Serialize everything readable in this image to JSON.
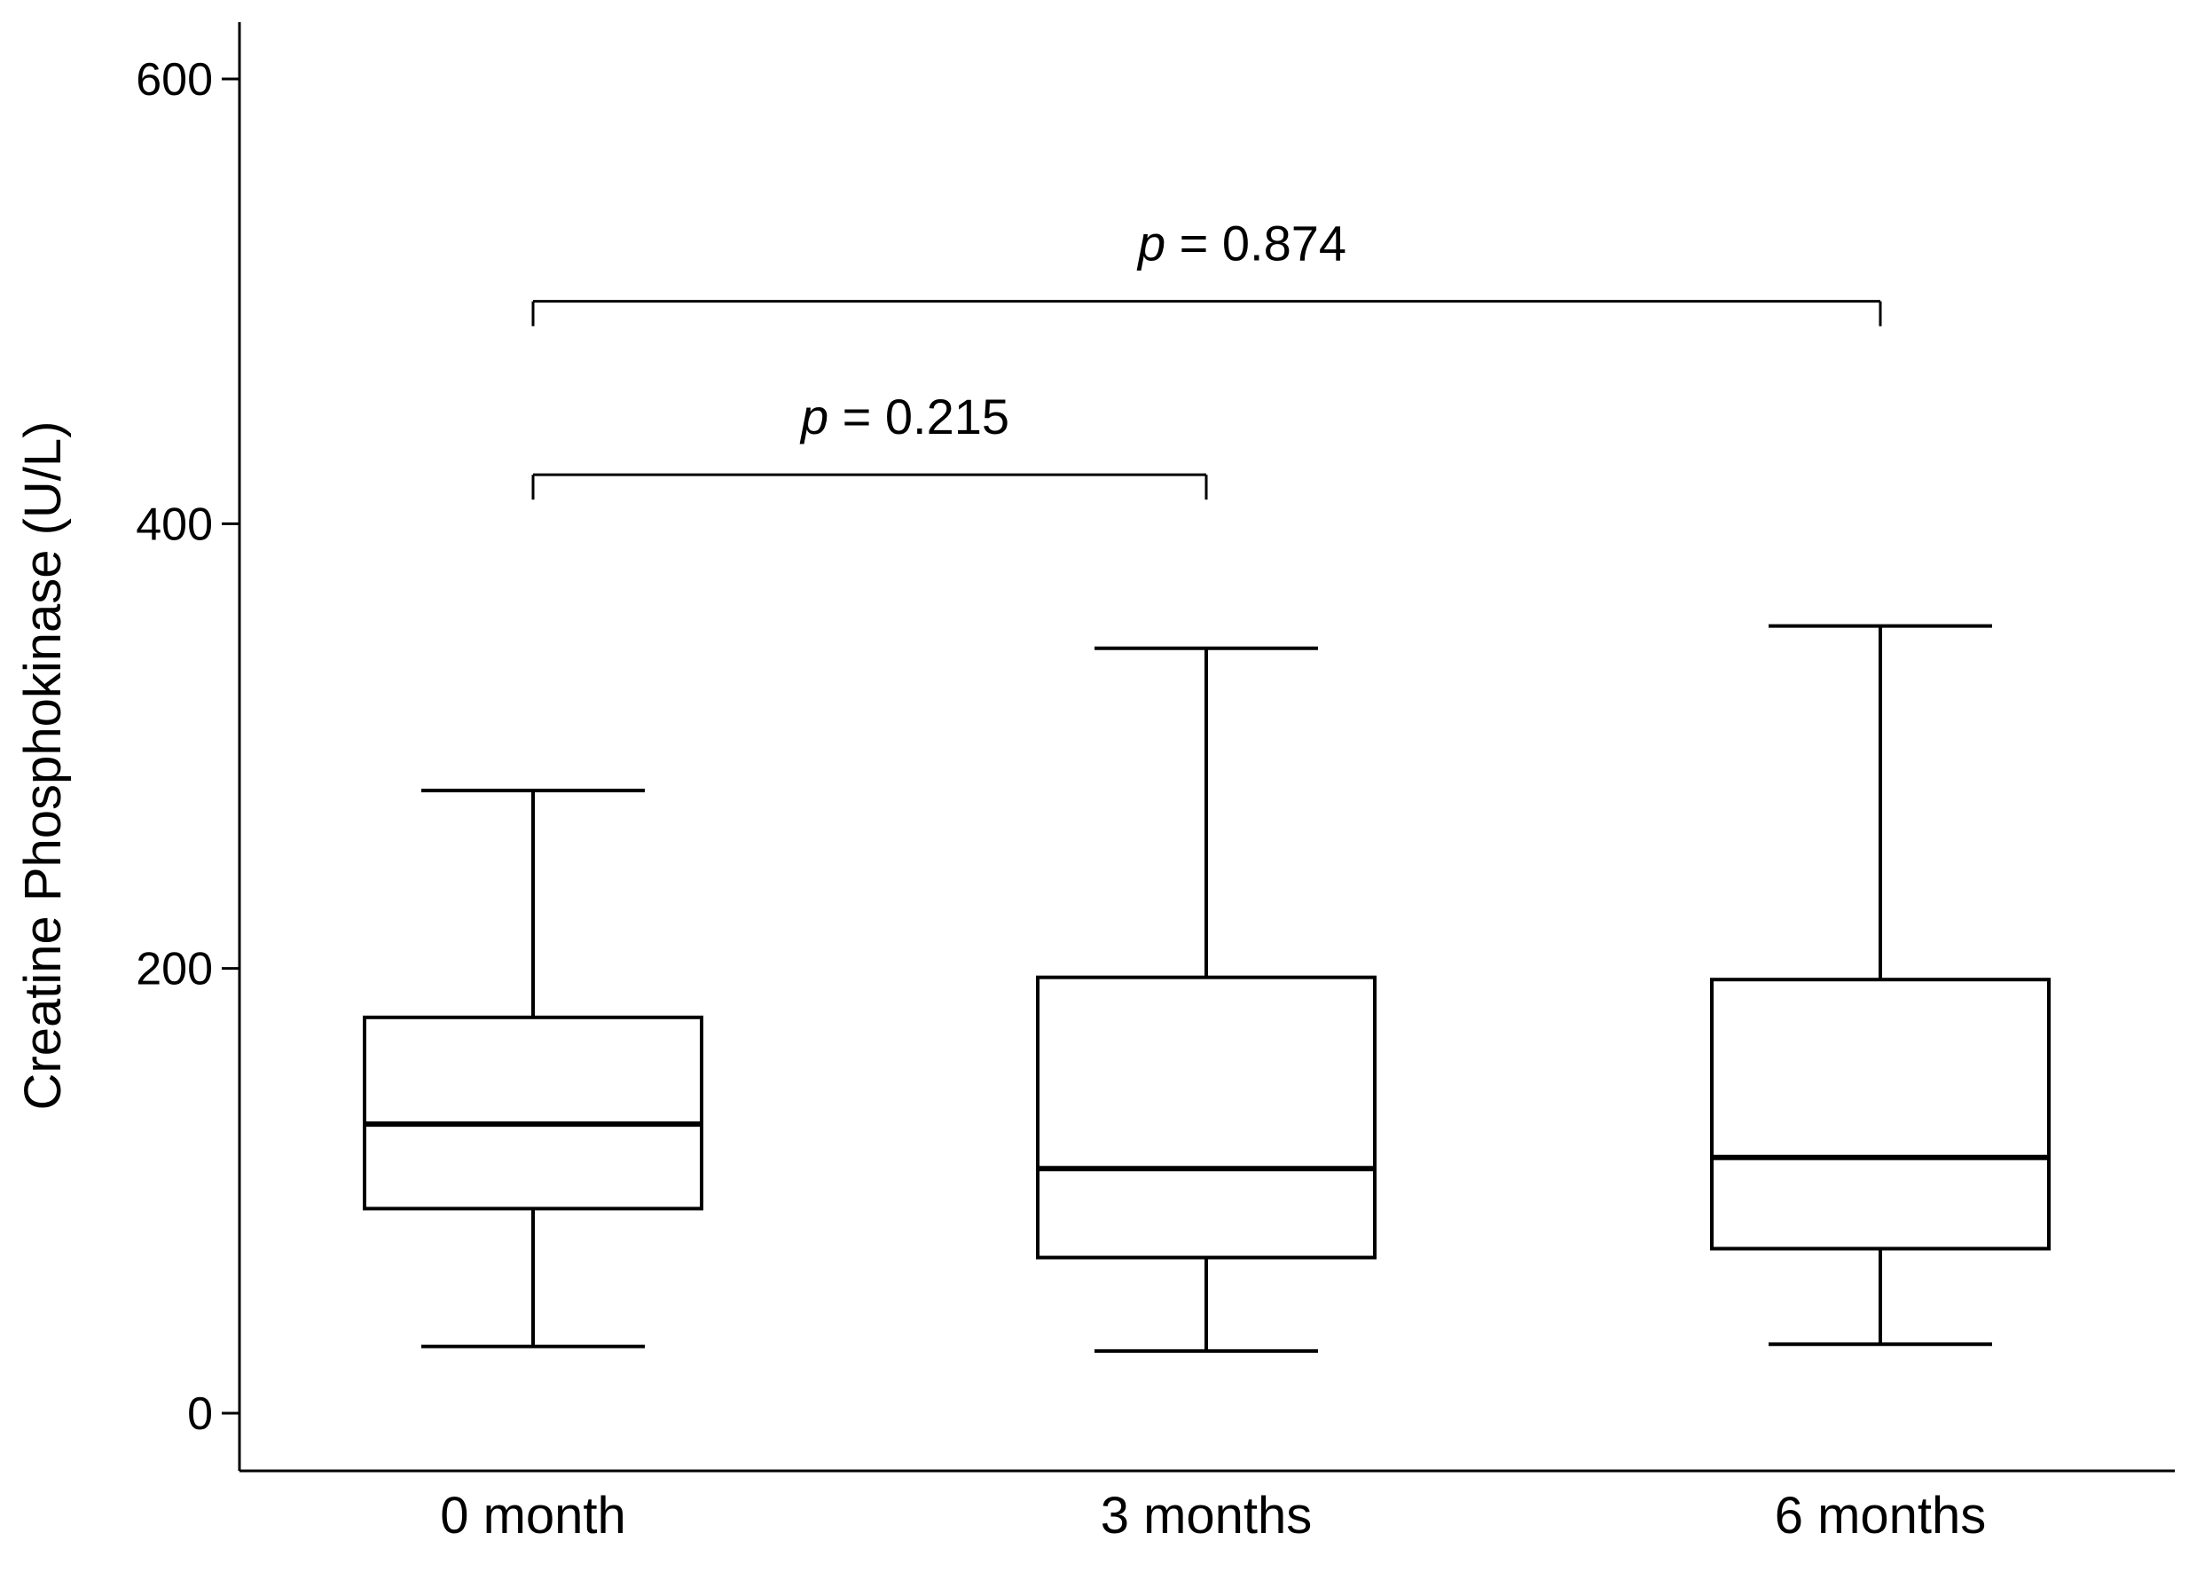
{
  "chart_data": {
    "type": "box",
    "ylabel": "Creatine Phosphokinase (U/L)",
    "xlabel": "",
    "ylim": [
      -25,
      625
    ],
    "yticks": [
      0,
      200,
      400,
      600
    ],
    "grid": false,
    "categories": [
      "0 month",
      "3 months",
      "6 months"
    ],
    "boxes": [
      {
        "category": "0 month",
        "whisker_low": 30,
        "q1": 92,
        "median": 130,
        "q3": 178,
        "whisker_high": 280
      },
      {
        "category": "3 months",
        "whisker_low": 28,
        "q1": 70,
        "median": 110,
        "q3": 196,
        "whisker_high": 344
      },
      {
        "category": "6 months",
        "whisker_low": 31,
        "q1": 74,
        "median": 115,
        "q3": 195,
        "whisker_high": 354
      }
    ],
    "comparisons": [
      {
        "from": 0,
        "to": 1,
        "y": 422,
        "p_symbol": "p",
        "p_text": " = 0.215"
      },
      {
        "from": 0,
        "to": 2,
        "y": 500,
        "p_symbol": "p",
        "p_text": " = 0.874"
      }
    ]
  }
}
